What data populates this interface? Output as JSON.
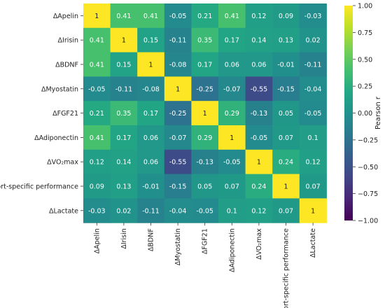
{
  "chart_data": {
    "type": "heatmap",
    "title": "",
    "rows": [
      "ΔApelin",
      "ΔIrisin",
      "ΔBDNF",
      "ΔMyostatin",
      "ΔFGF21",
      "ΔAdiponectin",
      "ΔVO₂max",
      "ΔSport-specific performance",
      "ΔLactate"
    ],
    "columns": [
      "ΔApelin",
      "ΔIrisin",
      "ΔBDNF",
      "ΔMyostatin",
      "ΔFGF21",
      "ΔAdiponectin",
      "ΔVO₂max",
      "ΔSport-specific performance",
      "ΔLactate"
    ],
    "values": [
      [
        1,
        0.41,
        0.41,
        -0.05,
        0.21,
        0.41,
        0.12,
        0.09,
        -0.03
      ],
      [
        0.41,
        1,
        0.15,
        -0.11,
        0.35,
        0.17,
        0.14,
        0.13,
        0.02
      ],
      [
        0.41,
        0.15,
        1,
        -0.08,
        0.17,
        0.06,
        0.06,
        -0.01,
        -0.11
      ],
      [
        -0.05,
        -0.11,
        -0.08,
        1,
        -0.25,
        -0.07,
        -0.55,
        -0.15,
        -0.04
      ],
      [
        0.21,
        0.35,
        0.17,
        -0.25,
        1,
        0.29,
        -0.13,
        0.05,
        -0.05
      ],
      [
        0.41,
        0.17,
        0.06,
        -0.07,
        0.29,
        1,
        -0.05,
        0.07,
        0.1
      ],
      [
        0.12,
        0.14,
        0.06,
        -0.55,
        -0.13,
        -0.05,
        1,
        0.24,
        0.12
      ],
      [
        0.09,
        0.13,
        -0.01,
        -0.15,
        0.05,
        0.07,
        0.24,
        1,
        0.07
      ],
      [
        -0.03,
        0.02,
        -0.11,
        -0.04,
        -0.05,
        0.1,
        0.12,
        0.07,
        1
      ]
    ],
    "colorbar": {
      "label": "Pearson r",
      "min": -1.0,
      "max": 1.0,
      "ticks": [
        "1.00",
        "0.75",
        "0.50",
        "0.25",
        "0.00",
        "−0.25",
        "−0.50",
        "−0.75",
        "−1.00"
      ],
      "colormap": "viridis"
    }
  }
}
